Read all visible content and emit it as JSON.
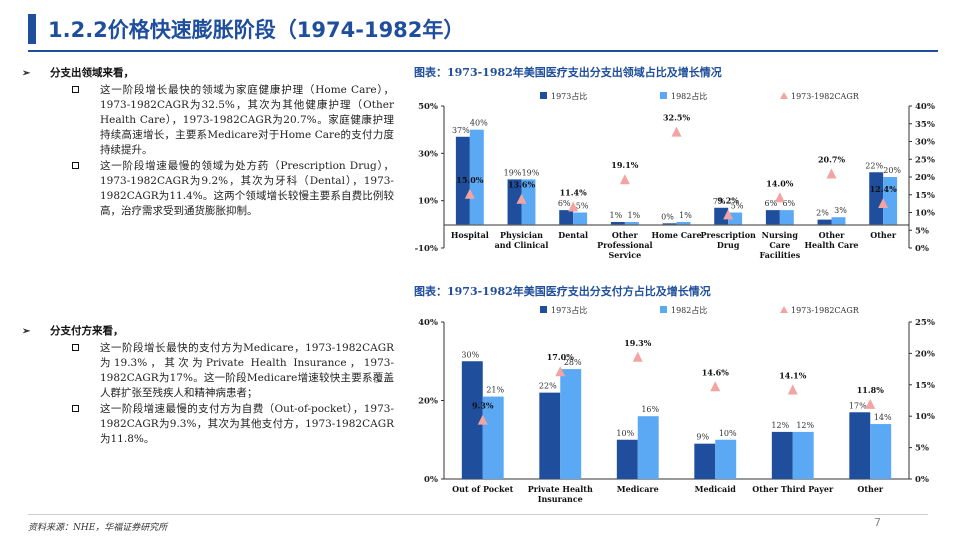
{
  "slide": {
    "title": "1.2.2价格快速膨胀阶段（1974-1982年）",
    "page_number": "7",
    "source": "资料来源：NHE，华福证券研究所"
  },
  "left": {
    "sections": [
      {
        "heading": "分支出领域来看，",
        "bullets": [
          "这一阶段增长最快的领域为家庭健康护理（Home Care），1973-1982CAGR为32.5%，其次为其他健康护理（Other Health Care），1973-1982CAGR为20.7%。家庭健康护理持续高速增长，主要系Medicare对于Home Care的支付力度持续提升。",
          "这一阶段增速最慢的领域为处方药（Prescription Drug），1973-1982CAGR为9.2%，其次为牙科（Dental），1973-1982CAGR为11.4%。这两个领域增长较慢主要系自费比例较高，治疗需求受到通货膨胀抑制。"
        ]
      },
      {
        "heading": "分支付方来看，",
        "bullets": [
          "这一阶段增长最快的支付方为Medicare，1973-1982CAGR为19.3%，其次为Private Health Insurance，1973-1982CAGR为17%。这一阶段Medicare增速较快主要系覆盖人群扩张至残疾人和精神病患者；",
          "这一阶段增速最慢的支付方为自费（Out-of-pocket），1973-1982CAGR为9.3%，其次为其他支付方，1973-1982CAGR为11.8%。"
        ]
      }
    ]
  },
  "colors": {
    "accent": "#1f4e9c",
    "series_1973": "#1f4e9c",
    "series_1982": "#5ba8f5",
    "series_cagr": "#f4a3a3"
  },
  "chart_data": [
    {
      "caption": "图表：1973-1982年美国医疗支出分支出领域占比及增长情况",
      "type": "bar",
      "categories": [
        "Hospital",
        "Physician and Clinical",
        "Dental",
        "Other Professional Service",
        "Home Care",
        "Prescription Drug",
        "Nursing Care Facilities",
        "Other Health Care",
        "Other"
      ],
      "category_lines": [
        [
          "Hospital"
        ],
        [
          "Physician",
          "and Clinical"
        ],
        [
          "Dental"
        ],
        [
          "Other",
          "Professional",
          "Service"
        ],
        [
          "Home Care"
        ],
        [
          "Prescription",
          "Drug"
        ],
        [
          "Nursing",
          "Care",
          "Facilities"
        ],
        [
          "Other",
          "Health Care"
        ],
        [
          "Other"
        ]
      ],
      "series": [
        {
          "name": "1973占比",
          "values": [
            37,
            19,
            6,
            1,
            0,
            7,
            6,
            2,
            22
          ],
          "labels": [
            "37%",
            "19%",
            "6%",
            "1%",
            "0%",
            "7%",
            "6%",
            "2%",
            "22%"
          ],
          "axis": "left"
        },
        {
          "name": "1982占比",
          "values": [
            40,
            19,
            5,
            1,
            1,
            5,
            6,
            3,
            20
          ],
          "labels": [
            "40%",
            "19%",
            "5%",
            "1%",
            "1%",
            "5%",
            "6%",
            "3%",
            "20%"
          ],
          "axis": "left"
        },
        {
          "name": "1973-1982CAGR",
          "values": [
            15.0,
            13.6,
            11.4,
            19.1,
            32.5,
            9.2,
            14.0,
            20.7,
            12.4
          ],
          "labels": [
            "15.0%",
            "13.6%",
            "11.4%",
            "19.1%",
            "32.5%",
            "9.2%",
            "14.0%",
            "20.7%",
            "12.4%"
          ],
          "axis": "right",
          "marker": "triangle"
        }
      ],
      "ylim": [
        -10,
        50
      ],
      "yticks": [
        -10,
        10,
        30,
        50
      ],
      "ytick_labels": [
        "-10%",
        "10%",
        "30%",
        "50%"
      ],
      "y2lim": [
        0,
        40
      ],
      "y2ticks": [
        0,
        5,
        10,
        15,
        20,
        25,
        30,
        35,
        40
      ],
      "y2tick_labels": [
        "0%",
        "5%",
        "10%",
        "15%",
        "20%",
        "25%",
        "30%",
        "35%",
        "40%"
      ],
      "legend": "top"
    },
    {
      "caption": "图表：1973-1982年美国医疗支出分支付方占比及增长情况",
      "type": "bar",
      "categories": [
        "Out of Pocket",
        "Private Health Insurance",
        "Medicare",
        "Medicaid",
        "Other Third Payer",
        "Other"
      ],
      "category_lines": [
        [
          "Out of Pocket"
        ],
        [
          "Private Health",
          "Insurance"
        ],
        [
          "Medicare"
        ],
        [
          "Medicaid"
        ],
        [
          "Other Third Payer"
        ],
        [
          "Other"
        ]
      ],
      "series": [
        {
          "name": "1973占比",
          "values": [
            30,
            22,
            10,
            9,
            12,
            17
          ],
          "labels": [
            "30%",
            "22%",
            "10%",
            "9%",
            "12%",
            "17%"
          ],
          "axis": "left"
        },
        {
          "name": "1982占比",
          "values": [
            21,
            28,
            16,
            10,
            12,
            14
          ],
          "labels": [
            "21%",
            "28%",
            "16%",
            "10%",
            "12%",
            "14%"
          ],
          "axis": "left"
        },
        {
          "name": "1973-1982CAGR",
          "values": [
            9.3,
            17.0,
            19.3,
            14.6,
            14.1,
            11.8
          ],
          "labels": [
            "9.3%",
            "17.0%",
            "19.3%",
            "14.6%",
            "14.1%",
            "11.8%"
          ],
          "axis": "right",
          "marker": "triangle"
        }
      ],
      "ylim": [
        0,
        40
      ],
      "yticks": [
        0,
        20,
        40
      ],
      "ytick_labels": [
        "0%",
        "20%",
        "40%"
      ],
      "y2lim": [
        0,
        25
      ],
      "y2ticks": [
        0,
        5,
        10,
        15,
        20,
        25
      ],
      "y2tick_labels": [
        "0%",
        "5%",
        "10%",
        "15%",
        "20%",
        "25%"
      ],
      "legend": "top"
    }
  ]
}
